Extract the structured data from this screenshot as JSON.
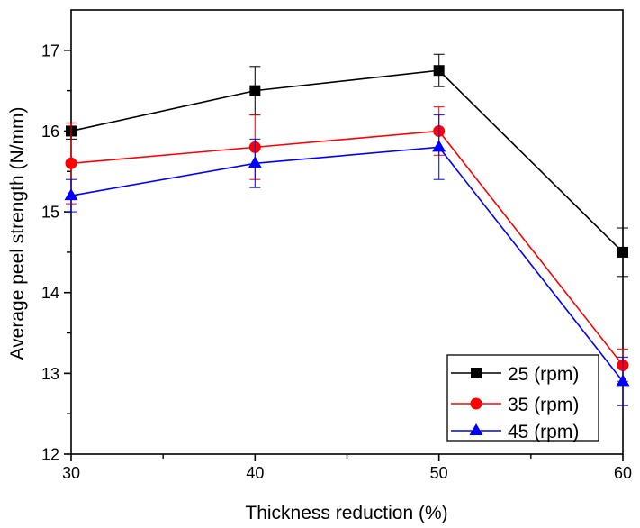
{
  "chart_data": {
    "type": "line",
    "title": "",
    "xlabel": "Thickness reduction (%)",
    "ylabel": "Average peel strength (N/mm)",
    "x": [
      30,
      40,
      50,
      60
    ],
    "xlim": [
      30,
      60
    ],
    "ylim": [
      12,
      17.5
    ],
    "xticks": [
      30,
      40,
      50,
      60
    ],
    "xtick_labels": [
      "30",
      "40",
      "50",
      "60"
    ],
    "x_minor_ticks": [
      35,
      45,
      55
    ],
    "yticks": [
      12,
      13,
      14,
      15,
      16,
      17
    ],
    "ytick_labels": [
      "12",
      "13",
      "14",
      "15",
      "16",
      "17"
    ],
    "y_minor_ticks": [
      12.5,
      13.5,
      14.5,
      15.5,
      16.5
    ],
    "grid": false,
    "legend_position": "bottom-right",
    "series": [
      {
        "name": "25 (rpm)",
        "color": "#000000",
        "marker": "square",
        "values": [
          16.0,
          16.5,
          16.75,
          14.5
        ],
        "errors": [
          0.1,
          0.3,
          0.2,
          0.3
        ]
      },
      {
        "name": "35 (rpm)",
        "color": "#ff0000",
        "marker": "circle",
        "values": [
          15.6,
          15.8,
          16.0,
          13.1
        ],
        "errors": [
          0.5,
          0.4,
          0.3,
          0.2
        ]
      },
      {
        "name": "45 (rpm)",
        "color": "#0000ff",
        "marker": "triangle",
        "values": [
          15.2,
          15.6,
          15.8,
          12.9
        ],
        "errors": [
          0.2,
          0.3,
          0.4,
          0.3
        ]
      }
    ]
  }
}
